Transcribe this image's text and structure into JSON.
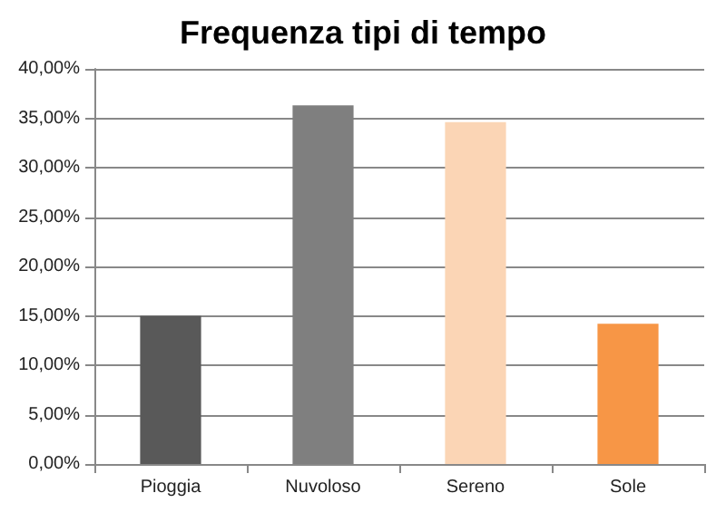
{
  "chart_data": {
    "type": "bar",
    "title": "Frequenza tipi di tempo",
    "categories": [
      "Pioggia",
      "Nuvoloso",
      "Sereno",
      "Sole"
    ],
    "values": [
      15.0,
      36.3,
      34.6,
      14.2
    ],
    "colors": [
      "#595959",
      "#7f7f7f",
      "#fbd5b5",
      "#f79646"
    ],
    "ylim": [
      0,
      40
    ],
    "yticks": [
      {
        "value": 0,
        "label": "0,00%"
      },
      {
        "value": 5,
        "label": "5,00%"
      },
      {
        "value": 10,
        "label": "10,00%"
      },
      {
        "value": 15,
        "label": "15,00%"
      },
      {
        "value": 20,
        "label": "20,00%"
      },
      {
        "value": 25,
        "label": "25,00%"
      },
      {
        "value": 30,
        "label": "30,00%"
      },
      {
        "value": 35,
        "label": "35,00%"
      },
      {
        "value": 40,
        "label": "40,00%"
      }
    ],
    "grid": "y"
  }
}
